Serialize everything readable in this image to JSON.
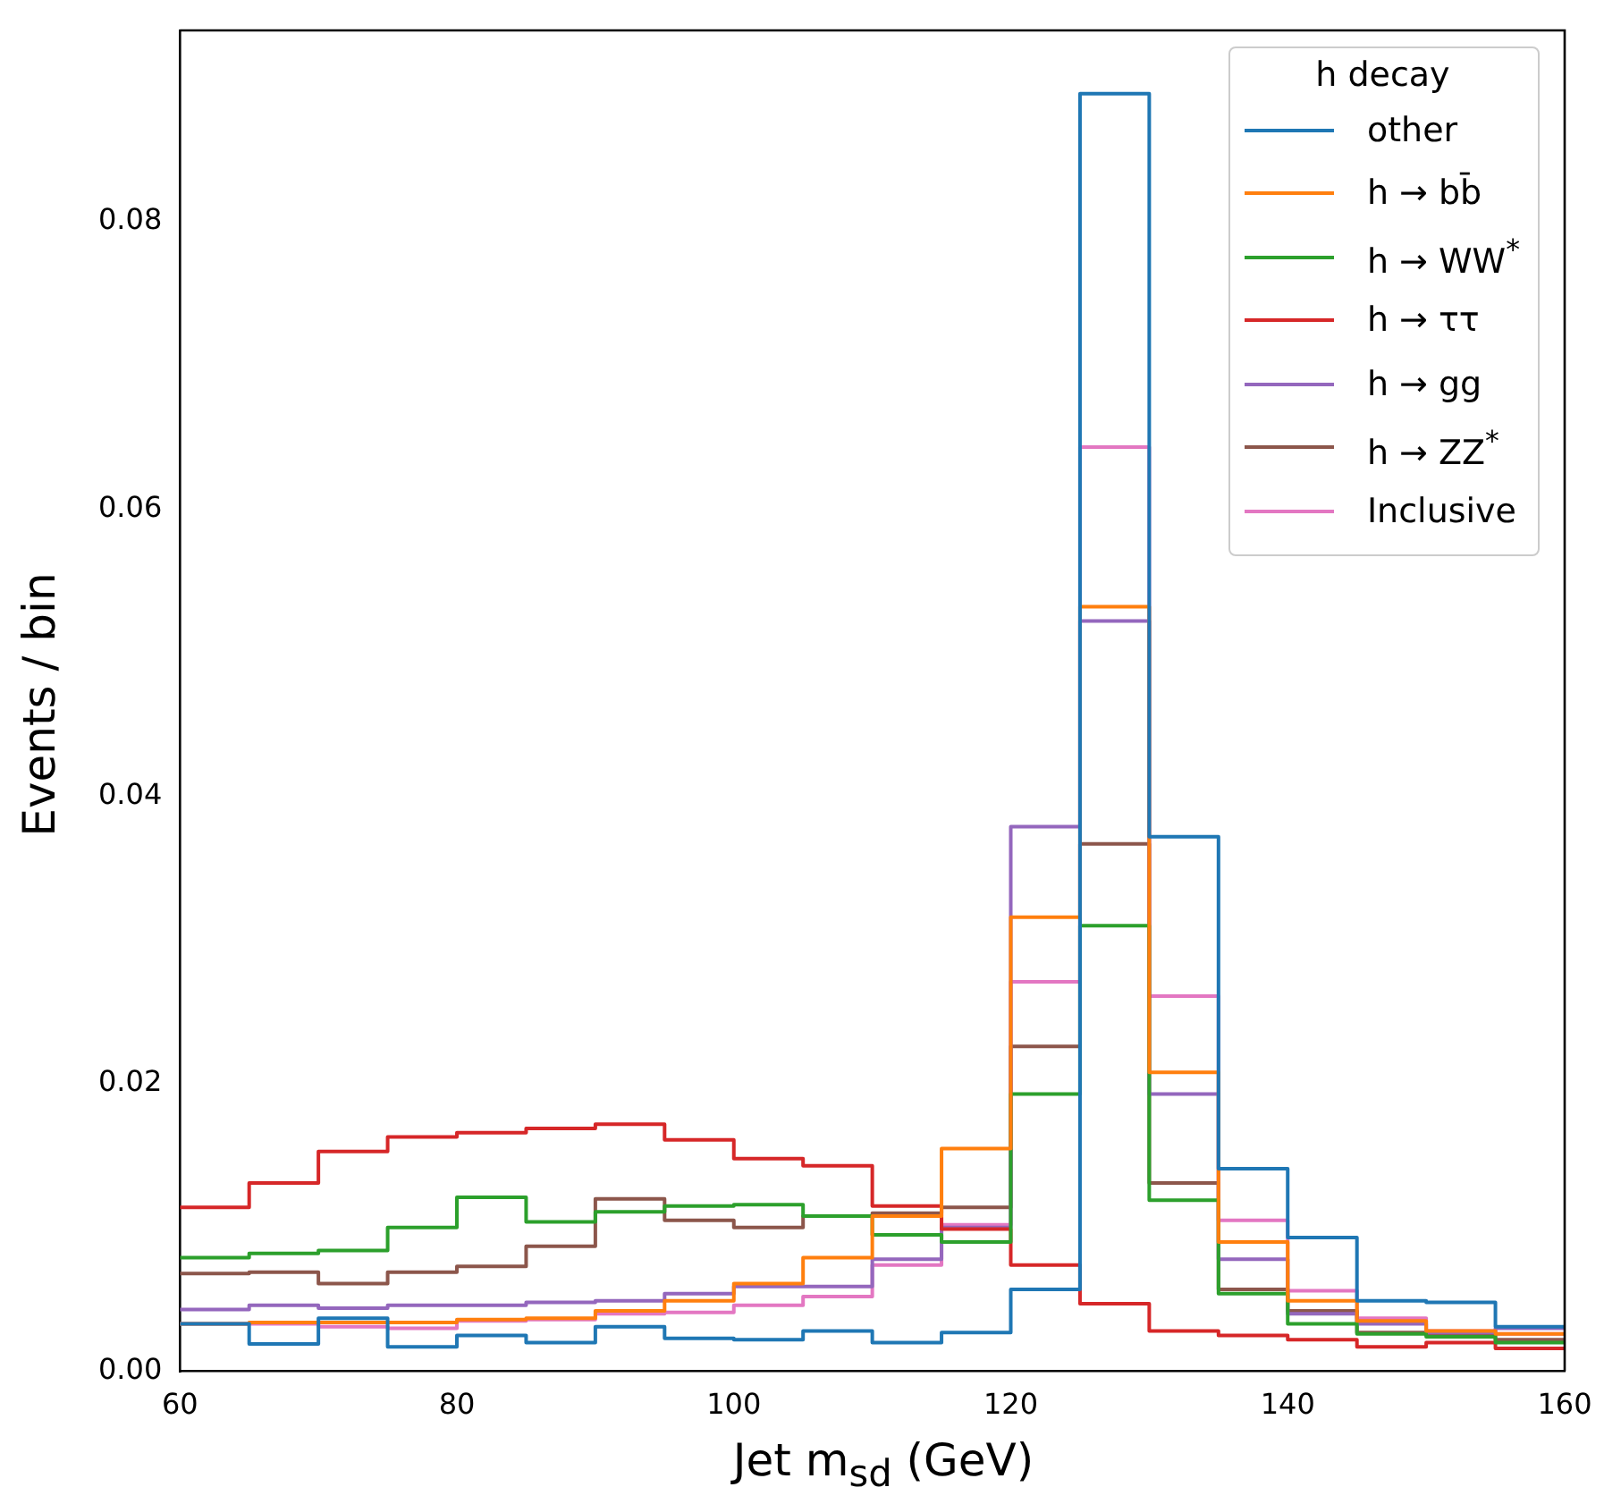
{
  "chart_data": {
    "type": "histogram",
    "xlabel": "Jet m$_{sd}$ (GeV)",
    "ylabel": "Events / bin",
    "legend_title": "h decay",
    "legend": "top right",
    "bins": [
      60,
      65,
      70,
      75,
      80,
      85,
      90,
      95,
      100,
      105,
      110,
      115,
      120,
      125,
      130,
      135,
      140,
      145,
      150,
      155,
      160
    ],
    "xlim": [
      60,
      160
    ],
    "xticks": [
      60,
      80,
      100,
      120,
      140,
      160
    ],
    "ylim": [
      0,
      0.0933
    ],
    "yticks": [
      {
        "value": 0,
        "label": "0.00"
      },
      {
        "value": 0.02,
        "label": "0.02"
      },
      {
        "value": 0.04,
        "label": "0.04"
      },
      {
        "value": 0.06,
        "label": "0.06"
      },
      {
        "value": 0.08,
        "label": "0.08"
      }
    ],
    "series": [
      {
        "name": "other",
        "color": "#1f77b4",
        "values": [
          0.0033,
          0.0019,
          0.0037,
          0.0017,
          0.0025,
          0.002,
          0.0031,
          0.0023,
          0.0022,
          0.0028,
          0.002,
          0.0027,
          0.0057,
          0.0889,
          0.0372,
          0.0141,
          0.0093,
          0.0049,
          0.0048,
          0.0031
        ]
      },
      {
        "name": "h → bb̄",
        "color": "#ff7f0e",
        "values": [
          0.0033,
          0.0034,
          0.0034,
          0.0034,
          0.0036,
          0.0037,
          0.0042,
          0.0049,
          0.0061,
          0.0079,
          0.0108,
          0.0155,
          0.0316,
          0.0532,
          0.0208,
          0.009,
          0.0049,
          0.0035,
          0.0028,
          0.0026
        ]
      },
      {
        "name": "h → WW$^{*}$",
        "color": "#2ca02c",
        "values": [
          0.0079,
          0.0082,
          0.0084,
          0.01,
          0.0121,
          0.0104,
          0.0111,
          0.0115,
          0.0116,
          0.0108,
          0.0095,
          0.009,
          0.0193,
          0.031,
          0.0119,
          0.0054,
          0.0033,
          0.0026,
          0.0024,
          0.002
        ]
      },
      {
        "name": "h → ττ",
        "color": "#d62728",
        "values": [
          0.0114,
          0.0131,
          0.0153,
          0.0163,
          0.0166,
          0.0169,
          0.0172,
          0.0161,
          0.0148,
          0.0143,
          0.0115,
          0.0099,
          0.0074,
          0.0047,
          0.0028,
          0.0025,
          0.0022,
          0.0017,
          0.002,
          0.0016
        ]
      },
      {
        "name": "h → gg",
        "color": "#9467bd",
        "values": [
          0.0043,
          0.0046,
          0.0044,
          0.0046,
          0.0046,
          0.0048,
          0.0049,
          0.0054,
          0.0059,
          0.0059,
          0.0078,
          0.01,
          0.0379,
          0.0522,
          0.0193,
          0.0078,
          0.004,
          0.0033,
          0.0027,
          0.003
        ]
      },
      {
        "name": "h → ZZ$^{*}$",
        "color": "#8c564b",
        "values": [
          0.0068,
          0.0069,
          0.0061,
          0.0069,
          0.0073,
          0.0087,
          0.012,
          0.0105,
          0.01,
          0.0108,
          0.011,
          0.0114,
          0.0226,
          0.0367,
          0.0131,
          0.0057,
          0.0042,
          0.0027,
          0.0026,
          0.0022
        ]
      },
      {
        "name": "Inclusive",
        "color": "#e377c2",
        "values": [
          0.0033,
          0.0033,
          0.0031,
          0.003,
          0.0035,
          0.0036,
          0.004,
          0.0041,
          0.0046,
          0.0052,
          0.0074,
          0.0102,
          0.0271,
          0.0643,
          0.0261,
          0.0105,
          0.0056,
          0.0037,
          0.0028,
          0.0026
        ]
      }
    ]
  }
}
